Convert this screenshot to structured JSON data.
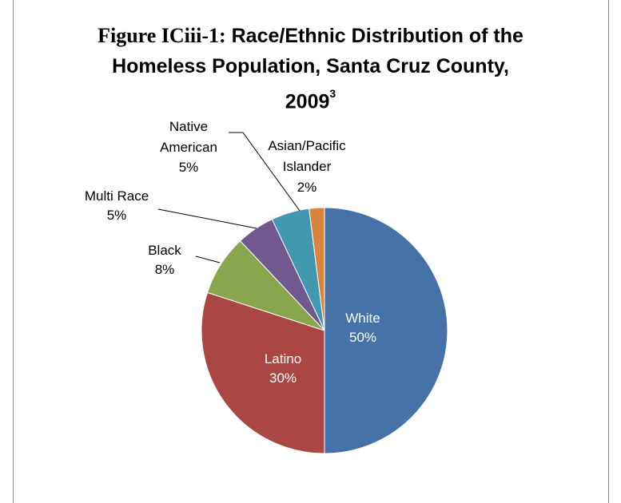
{
  "title": {
    "prefix": "Figure ICiii-1:",
    "line1_rest": "Race/Ethnic Distribution of the",
    "line2": "Homeless Population, Santa Cruz County,",
    "line3": "2009",
    "footnote_mark": "3"
  },
  "chart_data": {
    "type": "pie",
    "title": "Race/Ethnic Distribution of the Homeless Population, Santa Cruz County, 2009",
    "start_angle_deg": 90,
    "direction": "clockwise",
    "slices": [
      {
        "name": "White",
        "percent_label": "50%",
        "value": 50,
        "color": "#4572a7"
      },
      {
        "name": "Latino",
        "percent_label": "30%",
        "value": 30,
        "color": "#aa4643"
      },
      {
        "name": "Black",
        "percent_label": "8%",
        "value": 8,
        "color": "#89a54e"
      },
      {
        "name": "Multi Race",
        "percent_label": "5%",
        "value": 5,
        "color": "#71588f"
      },
      {
        "name": "Native American",
        "percent_label": "5%",
        "value": 5,
        "color": "#4198af"
      },
      {
        "name": "Asian/Pacific Islander",
        "percent_label": "2%",
        "value": 2,
        "color": "#db843d"
      }
    ],
    "label_text_color_inside": "#ffffff",
    "label_text_color_outside": "#000000"
  }
}
